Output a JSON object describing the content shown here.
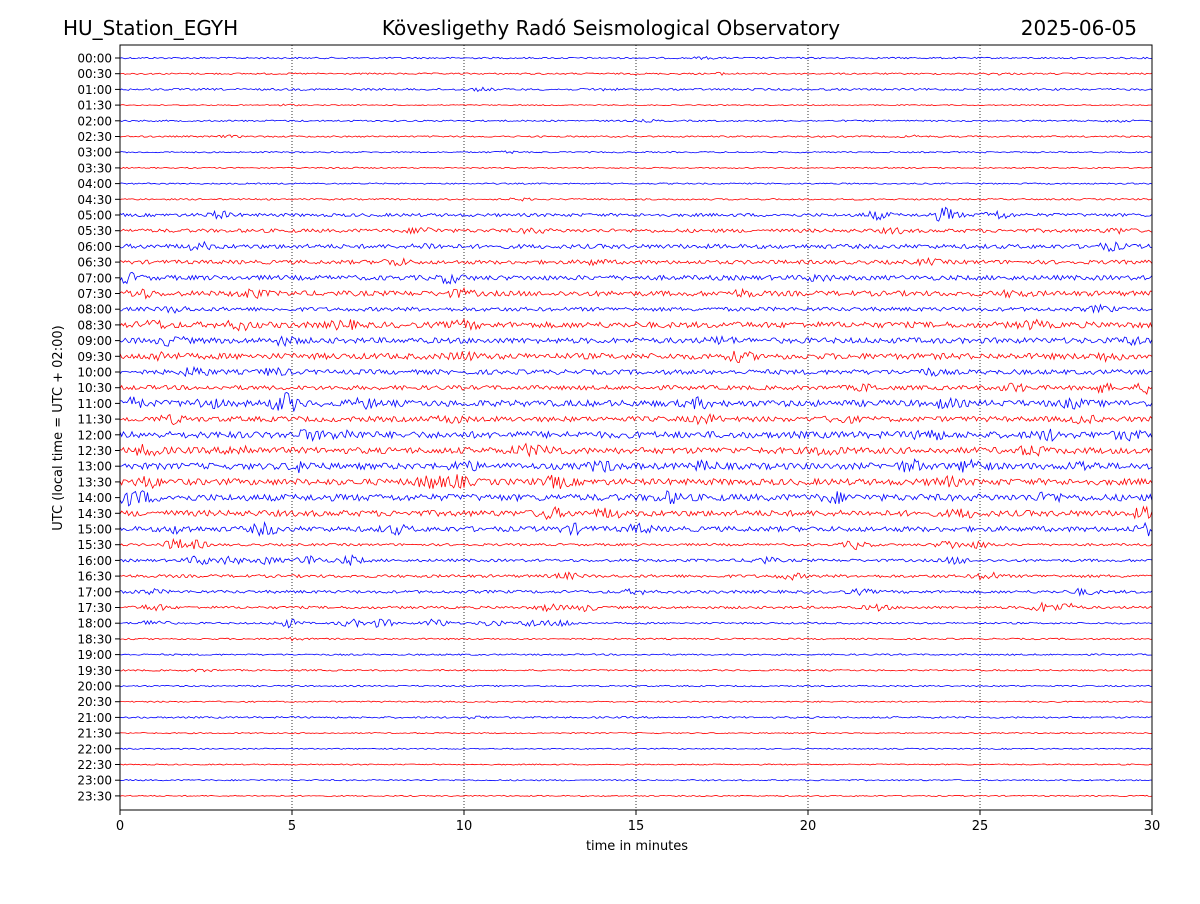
{
  "header": {
    "station": "HU_Station_EGYH",
    "observatory": "Kövesligethy Radó Seismological Observatory",
    "date": "2025-06-05"
  },
  "chart_data": {
    "type": "line",
    "title": "Kövesligethy Radó Seismological Observatory",
    "xlabel": "time in minutes",
    "ylabel": "UTC (local time = UTC + 02:00)",
    "xlim": [
      0,
      30
    ],
    "x_ticks": [
      "0",
      "5",
      "10",
      "15",
      "20",
      "25",
      "30"
    ],
    "x_tick_values": [
      0,
      5,
      10,
      15,
      20,
      25,
      30
    ],
    "grid": "vertical-dotted",
    "colors": {
      "even_rows": "#0000ff",
      "odd_rows": "#ff0000",
      "grid": "#000000"
    },
    "rows": [
      {
        "label": "00:00",
        "level": 0.8,
        "events": [
          [
            17.0,
            0.8
          ]
        ]
      },
      {
        "label": "00:30",
        "level": 0.8,
        "events": [
          [
            17.5,
            0.8
          ],
          [
            25.5,
            0.8
          ]
        ]
      },
      {
        "label": "01:00",
        "level": 1.0,
        "events": [
          [
            10.5,
            1.2
          ],
          [
            14.0,
            0.8
          ]
        ]
      },
      {
        "label": "01:30",
        "level": 0.5,
        "events": [
          [
            4.8,
            0.8
          ]
        ]
      },
      {
        "label": "02:00",
        "level": 0.8,
        "events": [
          [
            15.3,
            0.8
          ],
          [
            29.0,
            1.0
          ]
        ]
      },
      {
        "label": "02:30",
        "level": 0.8,
        "events": [
          [
            3.2,
            0.8
          ],
          [
            23.0,
            0.8
          ]
        ]
      },
      {
        "label": "03:00",
        "level": 0.7,
        "events": [
          [
            11.3,
            1.0
          ]
        ]
      },
      {
        "label": "03:30",
        "level": 0.6,
        "events": [
          [
            6.4,
            0.8
          ]
        ]
      },
      {
        "label": "04:00",
        "level": 0.7,
        "events": []
      },
      {
        "label": "04:30",
        "level": 0.8,
        "events": [
          [
            11.6,
            1.0
          ]
        ]
      },
      {
        "label": "05:00",
        "level": 1.6,
        "events": [
          [
            2.9,
            3.0
          ],
          [
            22.0,
            3.5
          ],
          [
            24.0,
            6.5
          ],
          [
            25.5,
            4.0
          ]
        ]
      },
      {
        "label": "05:30",
        "level": 1.8,
        "events": [
          [
            8.8,
            3.0
          ],
          [
            12.0,
            2.0
          ],
          [
            22.5,
            2.0
          ],
          [
            29.0,
            2.0
          ]
        ]
      },
      {
        "label": "06:00",
        "level": 2.2,
        "events": [
          [
            2.3,
            3.0
          ],
          [
            9.0,
            2.0
          ],
          [
            28.8,
            3.0
          ]
        ]
      },
      {
        "label": "06:30",
        "level": 2.0,
        "events": [
          [
            8.0,
            3.0
          ],
          [
            13.8,
            2.0
          ],
          [
            23.5,
            2.0
          ]
        ]
      },
      {
        "label": "07:00",
        "level": 2.4,
        "events": [
          [
            0.2,
            4.0
          ],
          [
            9.6,
            4.0
          ],
          [
            20.3,
            2.5
          ]
        ]
      },
      {
        "label": "07:30",
        "level": 2.6,
        "events": [
          [
            0.6,
            3.5
          ],
          [
            3.8,
            3.5
          ],
          [
            9.9,
            3.0
          ],
          [
            18.1,
            2.5
          ],
          [
            26.0,
            2.5
          ]
        ]
      },
      {
        "label": "08:00",
        "level": 2.0,
        "events": [
          [
            1.6,
            2.5
          ],
          [
            28.5,
            2.5
          ]
        ]
      },
      {
        "label": "08:30",
        "level": 3.0,
        "events": [
          [
            1.0,
            3.0
          ],
          [
            3.5,
            3.5
          ],
          [
            6.5,
            3.5
          ],
          [
            10.0,
            3.0
          ],
          [
            26.5,
            3.0
          ]
        ]
      },
      {
        "label": "09:00",
        "level": 2.8,
        "events": [
          [
            1.5,
            3.5
          ],
          [
            4.8,
            3.0
          ],
          [
            17.5,
            2.5
          ],
          [
            29.5,
            3.0
          ]
        ]
      },
      {
        "label": "09:30",
        "level": 3.0,
        "events": [
          [
            1.2,
            3.0
          ],
          [
            10.0,
            3.0
          ],
          [
            18.0,
            3.5
          ],
          [
            28.7,
            3.0
          ]
        ]
      },
      {
        "label": "10:00",
        "level": 2.4,
        "events": [
          [
            2.2,
            4.0
          ],
          [
            4.5,
            3.0
          ],
          [
            23.5,
            2.5
          ]
        ]
      },
      {
        "label": "10:30",
        "level": 2.2,
        "events": [
          [
            21.7,
            2.5
          ],
          [
            26.0,
            3.5
          ],
          [
            28.5,
            3.5
          ],
          [
            29.9,
            4.5
          ]
        ]
      },
      {
        "label": "11:00",
        "level": 3.2,
        "events": [
          [
            0.3,
            4.0
          ],
          [
            2.5,
            4.0
          ],
          [
            4.8,
            8.5
          ],
          [
            7.1,
            3.5
          ],
          [
            16.8,
            3.5
          ],
          [
            24.0,
            3.0
          ],
          [
            27.7,
            3.0
          ]
        ]
      },
      {
        "label": "11:30",
        "level": 2.6,
        "events": [
          [
            1.5,
            3.0
          ],
          [
            9.6,
            3.0
          ],
          [
            17.0,
            3.5
          ],
          [
            21.0,
            3.0
          ],
          [
            28.0,
            3.0
          ]
        ]
      },
      {
        "label": "12:00",
        "level": 3.4,
        "events": [
          [
            5.5,
            3.5
          ],
          [
            6.5,
            3.5
          ],
          [
            23.5,
            4.5
          ],
          [
            27.0,
            3.5
          ],
          [
            29.3,
            3.5
          ]
        ]
      },
      {
        "label": "12:30",
        "level": 3.2,
        "events": [
          [
            0.8,
            4.0
          ],
          [
            3.5,
            4.0
          ],
          [
            11.8,
            4.0
          ],
          [
            12.5,
            3.5
          ],
          [
            20.5,
            3.5
          ],
          [
            26.5,
            3.5
          ]
        ]
      },
      {
        "label": "13:00",
        "level": 3.2,
        "events": [
          [
            5.3,
            4.0
          ],
          [
            10.0,
            4.0
          ],
          [
            14.0,
            4.0
          ],
          [
            17.0,
            3.5
          ],
          [
            23.0,
            4.5
          ],
          [
            24.8,
            6.5
          ],
          [
            28.0,
            3.5
          ]
        ]
      },
      {
        "label": "13:30",
        "level": 3.2,
        "events": [
          [
            0.8,
            4.0
          ],
          [
            9.0,
            5.5
          ],
          [
            9.8,
            4.5
          ],
          [
            12.7,
            4.5
          ],
          [
            24.0,
            3.5
          ]
        ]
      },
      {
        "label": "14:00",
        "level": 3.4,
        "events": [
          [
            0.1,
            5.0
          ],
          [
            0.6,
            4.0
          ],
          [
            16.0,
            4.0
          ],
          [
            20.8,
            3.5
          ],
          [
            27.0,
            3.5
          ]
        ]
      },
      {
        "label": "14:30",
        "level": 3.0,
        "events": [
          [
            12.5,
            4.0
          ],
          [
            14.2,
            3.5
          ],
          [
            24.5,
            3.0
          ],
          [
            29.8,
            4.0
          ]
        ]
      },
      {
        "label": "15:00",
        "level": 2.6,
        "events": [
          [
            1.7,
            3.0
          ],
          [
            4.2,
            5.0
          ],
          [
            8.0,
            3.5
          ],
          [
            13.2,
            3.5
          ],
          [
            15.1,
            3.5
          ],
          [
            29.9,
            4.5
          ]
        ]
      },
      {
        "label": "15:30",
        "level": 1.2,
        "events": [
          [
            1.6,
            4.5
          ],
          [
            2.2,
            3.5
          ],
          [
            21.4,
            4.0
          ],
          [
            24.1,
            4.0
          ],
          [
            25.0,
            3.0
          ]
        ]
      },
      {
        "label": "16:00",
        "level": 1.4,
        "events": [
          [
            2.3,
            4.0
          ],
          [
            3.2,
            3.5
          ],
          [
            4.3,
            3.0
          ],
          [
            5.5,
            4.5
          ],
          [
            6.7,
            4.0
          ],
          [
            18.7,
            3.0
          ],
          [
            24.3,
            3.0
          ]
        ]
      },
      {
        "label": "16:30",
        "level": 1.5,
        "events": [
          [
            13.0,
            2.5
          ],
          [
            19.5,
            2.5
          ],
          [
            25.2,
            3.5
          ]
        ]
      },
      {
        "label": "17:00",
        "level": 1.5,
        "events": [
          [
            0.9,
            2.0
          ],
          [
            15.0,
            2.0
          ],
          [
            21.5,
            2.0
          ],
          [
            28.0,
            2.5
          ]
        ]
      },
      {
        "label": "17:30",
        "level": 1.3,
        "events": [
          [
            1.0,
            3.0
          ],
          [
            12.5,
            3.0
          ],
          [
            13.5,
            3.0
          ],
          [
            22.0,
            2.5
          ],
          [
            26.8,
            4.0
          ],
          [
            27.5,
            3.5
          ]
        ]
      },
      {
        "label": "18:00",
        "level": 0.9,
        "events": [
          [
            1.0,
            3.5
          ],
          [
            4.9,
            4.0
          ],
          [
            6.7,
            3.5
          ],
          [
            7.6,
            4.0
          ],
          [
            9.2,
            4.0
          ],
          [
            10.8,
            3.0
          ],
          [
            12.0,
            3.5
          ],
          [
            12.8,
            3.5
          ]
        ]
      },
      {
        "label": "18:30",
        "level": 0.8,
        "events": [
          [
            5.0,
            1.0
          ]
        ]
      },
      {
        "label": "19:00",
        "level": 0.8,
        "events": []
      },
      {
        "label": "19:30",
        "level": 0.8,
        "events": [
          [
            2.4,
            1.0
          ]
        ]
      },
      {
        "label": "20:00",
        "level": 0.7,
        "events": []
      },
      {
        "label": "20:30",
        "level": 0.7,
        "events": []
      },
      {
        "label": "21:00",
        "level": 0.9,
        "events": [
          [
            10.3,
            1.0
          ]
        ]
      },
      {
        "label": "21:30",
        "level": 0.6,
        "events": []
      },
      {
        "label": "22:00",
        "level": 0.6,
        "events": []
      },
      {
        "label": "22:30",
        "level": 0.6,
        "events": []
      },
      {
        "label": "23:00",
        "level": 0.7,
        "events": []
      },
      {
        "label": "23:30",
        "level": 0.6,
        "events": []
      }
    ]
  }
}
